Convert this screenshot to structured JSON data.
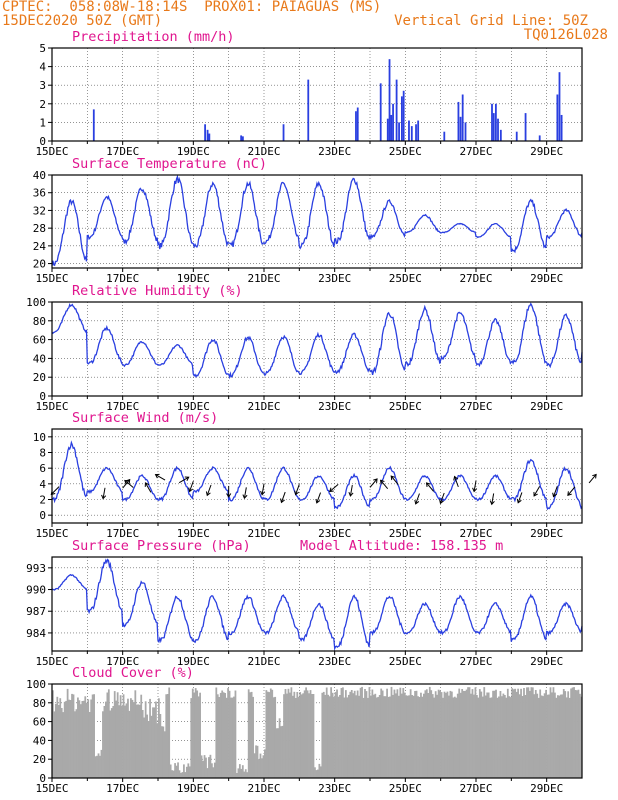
{
  "header": {
    "line1_left": "CPTEC:  058:08W-18:14S  PROX01: PAIAGUAS (MS)",
    "line2_left": "15DEC2020 50Z (GMT)",
    "line2_right": "Vertical Grid Line: 50Z",
    "line3_right": "TQ0126L028"
  },
  "colors": {
    "line": "#2a3fe0",
    "bar": "#2a3fe0",
    "title": "#e0168f",
    "header": "#e8791a",
    "cloud": "#a9a9a9",
    "arrow": "#000000"
  },
  "date_ticks": [
    "15DEC",
    "17DEC",
    "19DEC",
    "21DEC",
    "23DEC",
    "25DEC",
    "27DEC",
    "29DEC"
  ],
  "chart_data": [
    {
      "type": "bar",
      "title": "Precipitation (mm/h)",
      "ylim": [
        0,
        5
      ],
      "yticks": [
        "0",
        "1",
        "2",
        "3",
        "4",
        "5"
      ],
      "x_unit": "days after 15DEC",
      "bars": [
        [
          1.18,
          1.7
        ],
        [
          4.33,
          0.9
        ],
        [
          4.4,
          0.6
        ],
        [
          4.45,
          0.4
        ],
        [
          5.35,
          0.3
        ],
        [
          5.4,
          0.25
        ],
        [
          6.55,
          0.9
        ],
        [
          7.25,
          3.3
        ],
        [
          8.6,
          1.6
        ],
        [
          8.65,
          1.8
        ],
        [
          9.3,
          3.1
        ],
        [
          9.5,
          1.2
        ],
        [
          9.55,
          4.4
        ],
        [
          9.6,
          1.4
        ],
        [
          9.65,
          2.0
        ],
        [
          9.75,
          3.3
        ],
        [
          9.82,
          1.0
        ],
        [
          9.9,
          2.4
        ],
        [
          9.95,
          2.7
        ],
        [
          10.1,
          1.1
        ],
        [
          10.18,
          0.8
        ],
        [
          10.3,
          0.9
        ],
        [
          10.36,
          1.1
        ],
        [
          11.1,
          0.5
        ],
        [
          11.5,
          2.1
        ],
        [
          11.56,
          1.3
        ],
        [
          11.62,
          2.5
        ],
        [
          11.7,
          1.0
        ],
        [
          12.45,
          2.0
        ],
        [
          12.5,
          1.5
        ],
        [
          12.56,
          2.0
        ],
        [
          12.62,
          1.2
        ],
        [
          12.7,
          0.6
        ],
        [
          13.15,
          0.5
        ],
        [
          13.4,
          1.5
        ],
        [
          13.8,
          0.3
        ],
        [
          14.3,
          2.5
        ],
        [
          14.36,
          3.7
        ],
        [
          14.42,
          1.4
        ]
      ]
    },
    {
      "type": "line",
      "title": "Surface Temperature (nC)",
      "ylim": [
        19,
        40
      ],
      "yticks": [
        "20",
        "24",
        "28",
        "32",
        "36",
        "40"
      ],
      "x_unit": "days after 15DEC",
      "pattern_minima": [
        20,
        26,
        25,
        24,
        24,
        24,
        25,
        24,
        25,
        26,
        27,
        27,
        26,
        23,
        26,
        27
      ],
      "pattern_maxima": [
        34,
        35,
        37,
        39,
        38,
        38,
        38,
        38,
        39,
        34,
        31,
        29,
        29,
        34,
        32,
        32
      ]
    },
    {
      "type": "line",
      "title": "Relative Humidity (%)",
      "ylim": [
        0,
        100
      ],
      "yticks": [
        "0",
        "20",
        "40",
        "60",
        "80",
        "100"
      ],
      "x_unit": "days after 15DEC",
      "pattern_minima": [
        68,
        35,
        33,
        33,
        22,
        22,
        24,
        25,
        26,
        25,
        34,
        40,
        34,
        35,
        33,
        44
      ],
      "pattern_maxima": [
        97,
        72,
        58,
        54,
        60,
        62,
        63,
        65,
        65,
        88,
        92,
        88,
        80,
        97,
        85,
        85
      ]
    },
    {
      "type": "line",
      "title": "Surface Wind (m/s)",
      "ylim": [
        -1,
        11
      ],
      "yticks": [
        "0",
        "2",
        "4",
        "6",
        "8",
        "10"
      ],
      "x_unit": "days after 15DEC",
      "pattern_minima": [
        2,
        3,
        2,
        2,
        3,
        2,
        2,
        2,
        1,
        2,
        2,
        2,
        2,
        2,
        1,
        1
      ],
      "pattern_maxima": [
        9,
        6,
        5,
        6,
        6,
        6,
        6,
        5,
        5,
        6,
        5,
        5,
        5,
        7,
        6,
        5
      ],
      "wind_arrows": [
        [
          0.2,
          225
        ],
        [
          1.5,
          190
        ],
        [
          2.0,
          40
        ],
        [
          2.3,
          310
        ],
        [
          2.8,
          330
        ],
        [
          3.2,
          300
        ],
        [
          3.6,
          60
        ],
        [
          4.0,
          200
        ],
        [
          4.5,
          200
        ],
        [
          5.0,
          180
        ],
        [
          5.5,
          190
        ],
        [
          6.0,
          190
        ],
        [
          6.6,
          200
        ],
        [
          7.0,
          200
        ],
        [
          7.6,
          200
        ],
        [
          8.1,
          230
        ],
        [
          8.5,
          190
        ],
        [
          9.0,
          40
        ],
        [
          9.5,
          320
        ],
        [
          9.8,
          320
        ],
        [
          10.4,
          200
        ],
        [
          10.8,
          320
        ],
        [
          11.1,
          200
        ],
        [
          11.5,
          340
        ],
        [
          12.0,
          190
        ],
        [
          12.5,
          190
        ],
        [
          13.3,
          200
        ],
        [
          13.8,
          210
        ],
        [
          14.3,
          200
        ],
        [
          14.8,
          220
        ],
        [
          15.2,
          40
        ]
      ]
    },
    {
      "type": "line",
      "title": "Surface Pressure (hPa)",
      "annotation": "Model Altitude: 158.135 m",
      "ylim": [
        981.5,
        994.5
      ],
      "yticks": [
        "984",
        "987",
        "990",
        "993"
      ],
      "x_unit": "days after 15DEC",
      "pattern_minima": [
        990,
        987,
        985,
        983,
        983,
        984,
        984,
        983,
        982,
        984,
        984,
        984,
        984,
        983,
        984,
        985
      ],
      "pattern_maxima": [
        992,
        994,
        991,
        989,
        989,
        989,
        989,
        988,
        989,
        989,
        988,
        989,
        988,
        989,
        988,
        990
      ]
    },
    {
      "type": "area",
      "title": "Cloud Cover (%)",
      "ylim": [
        0,
        100
      ],
      "yticks": [
        "0",
        "20",
        "40",
        "60",
        "80",
        "100"
      ],
      "x_unit": "days after 15DEC",
      "gaps": [
        [
          3.3,
          3.9,
          2
        ],
        [
          4.2,
          4.6,
          10
        ],
        [
          5.2,
          5.5,
          5
        ],
        [
          5.7,
          6.0,
          20
        ],
        [
          7.4,
          7.6,
          2
        ],
        [
          6.3,
          6.5,
          50
        ]
      ]
    }
  ]
}
